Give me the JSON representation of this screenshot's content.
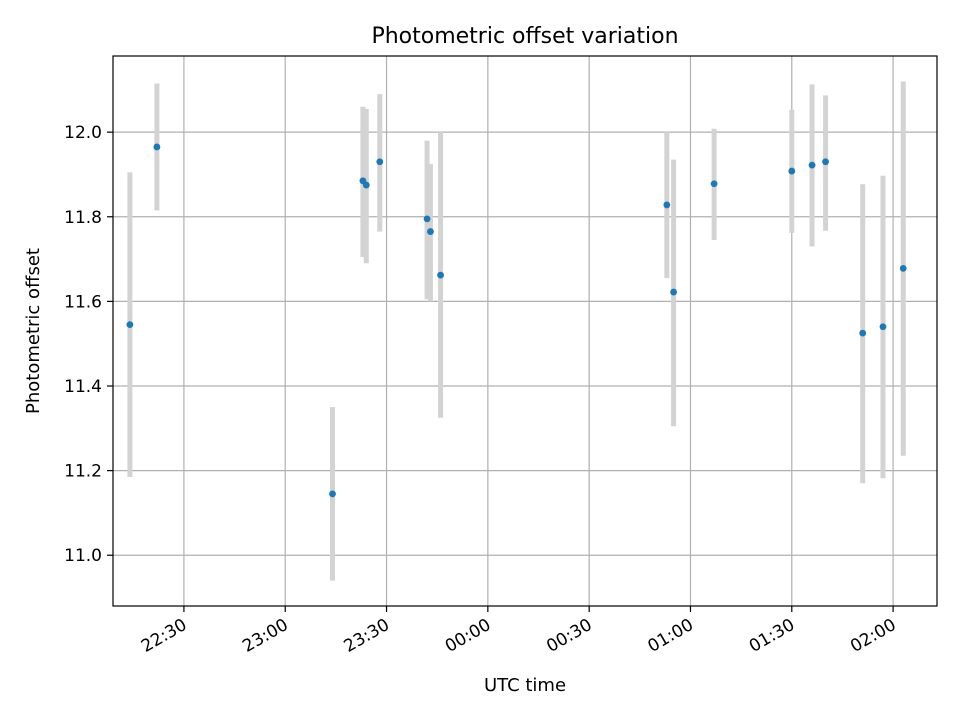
{
  "chart_data": {
    "type": "scatter",
    "title": "Photometric offset variation",
    "xlabel": "UTC time",
    "ylabel": "Photometric offset",
    "xlim": [
      "22:09",
      "02:13"
    ],
    "ylim": [
      10.88,
      12.18
    ],
    "x_ticks": [
      "22:30",
      "23:00",
      "23:30",
      "00:00",
      "00:30",
      "01:00",
      "01:30",
      "02:00"
    ],
    "y_ticks": [
      "11.0",
      "11.2",
      "11.4",
      "11.6",
      "11.8",
      "12.0"
    ],
    "grid": true,
    "points": [
      {
        "time": "22:14",
        "y": 11.545,
        "err_low": 11.185,
        "err_high": 11.905
      },
      {
        "time": "22:22",
        "y": 11.965,
        "err_low": 11.815,
        "err_high": 12.115
      },
      {
        "time": "23:14",
        "y": 11.145,
        "err_low": 10.94,
        "err_high": 11.35
      },
      {
        "time": "23:23",
        "y": 11.885,
        "err_low": 11.705,
        "err_high": 12.06
      },
      {
        "time": "23:24",
        "y": 11.875,
        "err_low": 11.69,
        "err_high": 12.055
      },
      {
        "time": "23:28",
        "y": 11.93,
        "err_low": 11.765,
        "err_high": 12.09
      },
      {
        "time": "23:42",
        "y": 11.795,
        "err_low": 11.605,
        "err_high": 11.98
      },
      {
        "time": "23:43",
        "y": 11.765,
        "err_low": 11.6,
        "err_high": 11.925
      },
      {
        "time": "23:46",
        "y": 11.662,
        "err_low": 11.325,
        "err_high": 12.0
      },
      {
        "time": "00:53",
        "y": 11.828,
        "err_low": 11.655,
        "err_high": 12.0
      },
      {
        "time": "00:55",
        "y": 11.622,
        "err_low": 11.305,
        "err_high": 11.935
      },
      {
        "time": "01:07",
        "y": 11.878,
        "err_low": 11.745,
        "err_high": 12.008
      },
      {
        "time": "01:30",
        "y": 11.908,
        "err_low": 11.762,
        "err_high": 12.053
      },
      {
        "time": "01:36",
        "y": 11.922,
        "err_low": 11.73,
        "err_high": 12.113
      },
      {
        "time": "01:40",
        "y": 11.93,
        "err_low": 11.767,
        "err_high": 12.087
      },
      {
        "time": "01:51",
        "y": 11.525,
        "err_low": 11.17,
        "err_high": 11.877
      },
      {
        "time": "01:57",
        "y": 11.54,
        "err_low": 11.182,
        "err_high": 11.897
      },
      {
        "time": "02:03",
        "y": 11.678,
        "err_low": 11.235,
        "err_high": 12.12
      }
    ],
    "colors": {
      "marker": "#1f77b4",
      "errorbar": "#d3d3d3",
      "grid": "#b0b0b0",
      "axes": "#000000"
    }
  }
}
